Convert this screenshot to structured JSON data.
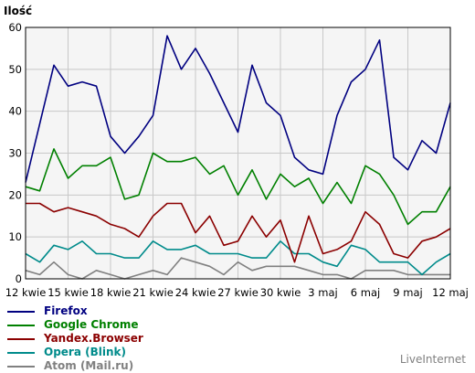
{
  "chart_data": {
    "type": "line",
    "ylabel": "Ilość",
    "ylim": [
      0,
      60
    ],
    "yticks": [
      0,
      10,
      20,
      30,
      40,
      50,
      60
    ],
    "x_tick_labels": [
      "12 kwie",
      "15 kwie",
      "18 kwie",
      "21 kwie",
      "24 kwie",
      "27 kwie",
      "30 kwie",
      "3 maj",
      "6 maj",
      "9 maj",
      "12 maj"
    ],
    "x_tick_index": [
      0,
      3,
      6,
      9,
      12,
      15,
      18,
      21,
      24,
      27,
      30
    ],
    "n_points": 31,
    "grid": true,
    "legend_position": "bottom-left",
    "series": [
      {
        "name": "Firefox",
        "color": "#000080",
        "values": [
          23,
          37,
          51,
          46,
          47,
          46,
          34,
          30,
          34,
          39,
          58,
          50,
          55,
          49,
          42,
          35,
          51,
          42,
          39,
          29,
          26,
          25,
          39,
          47,
          50,
          57,
          29,
          26,
          33,
          30,
          42
        ]
      },
      {
        "name": "Google Chrome",
        "color": "#008000",
        "values": [
          22,
          21,
          31,
          24,
          27,
          27,
          29,
          19,
          20,
          30,
          28,
          28,
          29,
          25,
          27,
          20,
          26,
          19,
          25,
          22,
          24,
          18,
          23,
          18,
          27,
          25,
          20,
          13,
          16,
          16,
          22
        ]
      },
      {
        "name": "Yandex.Browser",
        "color": "#8b0000",
        "values": [
          18,
          18,
          16,
          17,
          16,
          15,
          13,
          12,
          10,
          15,
          18,
          18,
          11,
          15,
          8,
          9,
          15,
          10,
          14,
          4,
          15,
          6,
          7,
          9,
          16,
          13,
          6,
          5,
          9,
          10,
          12
        ]
      },
      {
        "name": "Opera (Blink)",
        "color": "#008b8b",
        "values": [
          6,
          4,
          8,
          7,
          9,
          6,
          6,
          5,
          5,
          9,
          7,
          7,
          8,
          6,
          6,
          6,
          5,
          5,
          9,
          6,
          6,
          4,
          3,
          8,
          7,
          4,
          4,
          4,
          1,
          4,
          6
        ]
      },
      {
        "name": "Atom (Mail.ru)",
        "color": "#808080",
        "values": [
          2,
          1,
          4,
          1,
          0,
          2,
          1,
          0,
          1,
          2,
          1,
          5,
          4,
          3,
          1,
          4,
          2,
          3,
          3,
          3,
          2,
          1,
          1,
          0,
          2,
          2,
          2,
          1,
          1,
          1,
          1
        ]
      }
    ]
  },
  "brand": "LiveInternet"
}
